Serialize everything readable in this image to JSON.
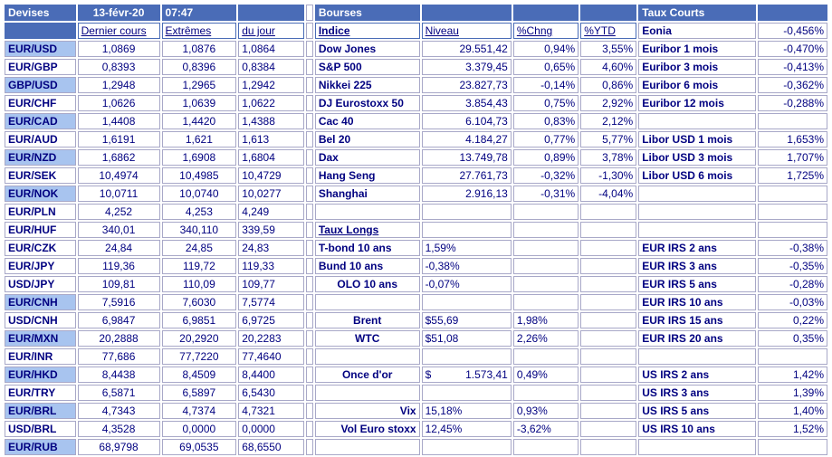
{
  "header": {
    "devises": "Devises",
    "date": "13-févr-20",
    "time": "07:47",
    "bourses": "Bourses",
    "taux_courts": "Taux Courts"
  },
  "col_headers": {
    "dernier": "Dernier cours",
    "extremes": "Extrêmes",
    "du_jour": "du jour",
    "indice": "Indice",
    "niveau": "Niveau",
    "chng": "%Chng",
    "ytd": "%YTD",
    "eonia": "Eonia",
    "eonia_val": "-0,456%"
  },
  "fx": [
    {
      "pair": "EUR/USD",
      "last": "1,0869",
      "high": "1,0876",
      "low": "1,0864"
    },
    {
      "pair": "EUR/GBP",
      "last": "0,8393",
      "high": "0,8396",
      "low": "0,8384"
    },
    {
      "pair": "GBP/USD",
      "last": "1,2948",
      "high": "1,2965",
      "low": "1,2942"
    },
    {
      "pair": "EUR/CHF",
      "last": "1,0626",
      "high": "1,0639",
      "low": "1,0622"
    },
    {
      "pair": "EUR/CAD",
      "last": "1,4408",
      "high": "1,4420",
      "low": "1,4388"
    },
    {
      "pair": "EUR/AUD",
      "last": "1,6191",
      "high": "1,621",
      "low": "1,613"
    },
    {
      "pair": "EUR/NZD",
      "last": "1,6862",
      "high": "1,6908",
      "low": "1,6804"
    },
    {
      "pair": "EUR/SEK",
      "last": "10,4974",
      "high": "10,4985",
      "low": "10,4729"
    },
    {
      "pair": "EUR/NOK",
      "last": "10,0711",
      "high": "10,0740",
      "low": "10,0277"
    },
    {
      "pair": "EUR/PLN",
      "last": "4,252",
      "high": "4,253",
      "low": "4,249"
    },
    {
      "pair": "EUR/HUF",
      "last": "340,01",
      "high": "340,110",
      "low": "339,59"
    },
    {
      "pair": "EUR/CZK",
      "last": "24,84",
      "high": "24,85",
      "low": "24,83"
    },
    {
      "pair": "EUR/JPY",
      "last": "119,36",
      "high": "119,72",
      "low": "119,33"
    },
    {
      "pair": "USD/JPY",
      "last": "109,81",
      "high": "110,09",
      "low": "109,77"
    },
    {
      "pair": "EUR/CNH",
      "last": "7,5916",
      "high": "7,6030",
      "low": "7,5774"
    },
    {
      "pair": "USD/CNH",
      "last": "6,9847",
      "high": "6,9851",
      "low": "6,9725"
    },
    {
      "pair": "EUR/MXN",
      "last": "20,2888",
      "high": "20,2920",
      "low": "20,2283"
    },
    {
      "pair": "EUR/INR",
      "last": "77,686",
      "high": "77,7220",
      "low": "77,4640"
    },
    {
      "pair": "EUR/HKD",
      "last": "8,4438",
      "high": "8,4509",
      "low": "8,4400"
    },
    {
      "pair": "EUR/TRY",
      "last": "6,5871",
      "high": "6,5897",
      "low": "6,5430"
    },
    {
      "pair": "EUR/BRL",
      "last": "4,7343",
      "high": "4,7374",
      "low": "4,7321"
    },
    {
      "pair": "USD/BRL",
      "last": "4,3528",
      "high": "0,0000",
      "low": "0,0000"
    },
    {
      "pair": "EUR/RUB",
      "last": "68,9798",
      "high": "69,0535",
      "low": "68,6550"
    }
  ],
  "bourses": [
    {
      "name": "Dow Jones",
      "level": "29.551,42",
      "chng": "0,94%",
      "ytd": "3,55%"
    },
    {
      "name": "S&P 500",
      "level": "3.379,45",
      "chng": "0,65%",
      "ytd": "4,60%"
    },
    {
      "name": "Nikkei 225",
      "level": "23.827,73",
      "chng": "-0,14%",
      "ytd": "0,86%"
    },
    {
      "name": "DJ Eurostoxx 50",
      "level": "3.854,43",
      "chng": "0,75%",
      "ytd": "2,92%"
    },
    {
      "name": "Cac 40",
      "level": "6.104,73",
      "chng": "0,83%",
      "ytd": "2,12%"
    },
    {
      "name": "Bel 20",
      "level": "4.184,27",
      "chng": "0,77%",
      "ytd": "5,77%"
    },
    {
      "name": "Dax",
      "level": "13.749,78",
      "chng": "0,89%",
      "ytd": "3,78%"
    },
    {
      "name": "Hang Seng",
      "level": "27.761,73",
      "chng": "-0,32%",
      "ytd": "-1,30%"
    },
    {
      "name": "Shanghai",
      "level": "2.916,13",
      "chng": "-0,31%",
      "ytd": "-4,04%"
    }
  ],
  "taux_longs": {
    "title": "Taux Longs",
    "rows": [
      {
        "name": "T-bond 10 ans",
        "val": "1,59%"
      },
      {
        "name": "Bund 10 ans",
        "val": "-0,38%"
      },
      {
        "name": "OLO 10 ans",
        "val": "-0,07%"
      }
    ]
  },
  "commodities": [
    {
      "name": "Brent",
      "level": "$55,69",
      "chng": "1,98%"
    },
    {
      "name": "WTC",
      "level": "$51,08",
      "chng": "2,26%"
    },
    {
      "name": "Once d'or",
      "cur": "$",
      "level": "1.573,41",
      "chng": "0,49%"
    },
    {
      "name": "Vix",
      "level": "15,18%",
      "chng": "0,93%"
    },
    {
      "name": "Vol Euro stoxx",
      "level": "12,45%",
      "chng": "-3,62%"
    }
  ],
  "taux_courts": [
    {
      "name": "Euribor 1 mois",
      "val": "-0,470%"
    },
    {
      "name": "Euribor 3 mois",
      "val": "-0,413%"
    },
    {
      "name": "Euribor 6 mois",
      "val": "-0,362%"
    },
    {
      "name": "Euribor 12 mois",
      "val": "-0,288%"
    },
    {
      "name": "Libor USD 1 mois",
      "val": "1,653%"
    },
    {
      "name": "Libor USD 3 mois",
      "val": "1,707%"
    },
    {
      "name": "Libor USD 6 mois",
      "val": "1,725%"
    }
  ],
  "irs": [
    {
      "name": "EUR IRS 2 ans",
      "val": "-0,38%"
    },
    {
      "name": "EUR IRS 3 ans",
      "val": "-0,35%"
    },
    {
      "name": "EUR IRS 5 ans",
      "val": "-0,28%"
    },
    {
      "name": "EUR IRS 10 ans",
      "val": "-0,03%"
    },
    {
      "name": "EUR IRS 15 ans",
      "val": "0,22%"
    },
    {
      "name": "EUR IRS 20 ans",
      "val": "0,35%"
    },
    {
      "name": "US IRS 2 ans",
      "val": "1,42%"
    },
    {
      "name": "US IRS 3 ans",
      "val": "1,39%"
    },
    {
      "name": "US IRS 5 ans",
      "val": "1,40%"
    },
    {
      "name": "US IRS 10 ans",
      "val": "1,52%"
    }
  ]
}
